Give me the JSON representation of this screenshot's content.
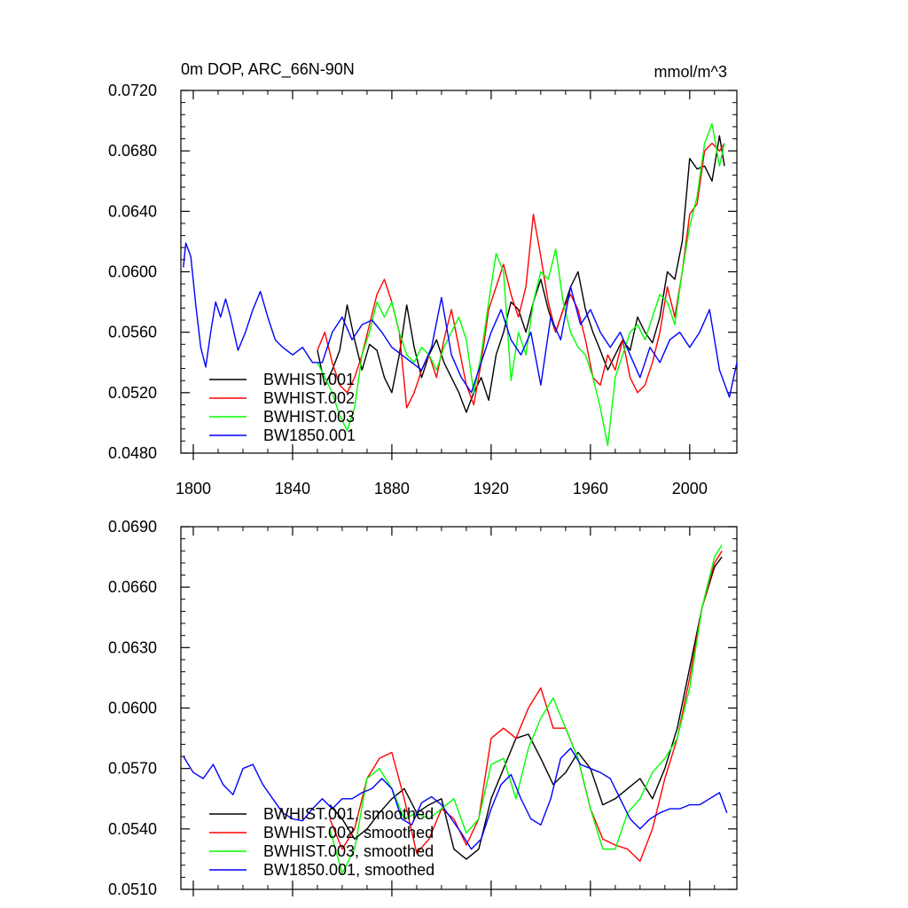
{
  "chart_data": [
    {
      "type": "line",
      "title": "0m DOP, ARC_66N-90N",
      "units": "mmol/m^3",
      "xlabel": "",
      "ylabel": "",
      "xlim": [
        1795,
        2019
      ],
      "ylim": [
        0.048,
        0.072
      ],
      "xticks": [
        1800,
        1840,
        1880,
        1920,
        1960,
        2000
      ],
      "xtick_labels": [
        "1800",
        "1840",
        "1880",
        "1920",
        "1960",
        "2000"
      ],
      "yticks": [
        0.048,
        0.052,
        0.056,
        0.06,
        0.064,
        0.068,
        0.072
      ],
      "ytick_labels": [
        "0.0480",
        "0.0520",
        "0.0560",
        "0.0600",
        "0.0640",
        "0.0680",
        "0.0720"
      ],
      "legend": "bottom-left",
      "series": [
        {
          "name": "BWHIST.001",
          "color": "#000000",
          "x": [
            1850,
            1853,
            1856,
            1859,
            1862,
            1865,
            1868,
            1871,
            1874,
            1877,
            1880,
            1883,
            1886,
            1889,
            1892,
            1895,
            1898,
            1901,
            1904,
            1907,
            1910,
            1913,
            1916,
            1919,
            1922,
            1925,
            1928,
            1931,
            1934,
            1937,
            1940,
            1943,
            1946,
            1949,
            1952,
            1955,
            1958,
            1961,
            1964,
            1967,
            1970,
            1973,
            1976,
            1979,
            1982,
            1985,
            1988,
            1991,
            1994,
            1997,
            2000,
            2003,
            2006,
            2009,
            2012,
            2014
          ],
          "y": [
            0.0548,
            0.0525,
            0.0535,
            0.0548,
            0.0578,
            0.0555,
            0.0535,
            0.0552,
            0.0548,
            0.053,
            0.052,
            0.0545,
            0.0578,
            0.055,
            0.053,
            0.0545,
            0.0555,
            0.054,
            0.053,
            0.052,
            0.0507,
            0.052,
            0.053,
            0.0515,
            0.0545,
            0.056,
            0.058,
            0.0575,
            0.056,
            0.058,
            0.0595,
            0.0575,
            0.056,
            0.0575,
            0.059,
            0.06,
            0.0575,
            0.056,
            0.0548,
            0.0535,
            0.0545,
            0.0555,
            0.0548,
            0.057,
            0.056,
            0.0553,
            0.057,
            0.06,
            0.0595,
            0.062,
            0.0675,
            0.0668,
            0.067,
            0.066,
            0.069,
            0.067
          ]
        },
        {
          "name": "BWHIST.002",
          "color": "#ff0000",
          "x": [
            1850,
            1853,
            1856,
            1859,
            1862,
            1865,
            1868,
            1871,
            1874,
            1877,
            1880,
            1883,
            1886,
            1889,
            1892,
            1895,
            1898,
            1901,
            1904,
            1907,
            1910,
            1913,
            1916,
            1919,
            1922,
            1925,
            1928,
            1931,
            1934,
            1937,
            1940,
            1943,
            1946,
            1949,
            1952,
            1955,
            1958,
            1961,
            1964,
            1967,
            1970,
            1973,
            1976,
            1979,
            1982,
            1985,
            1988,
            1991,
            1994,
            1997,
            2000,
            2003,
            2006,
            2009,
            2012,
            2014
          ],
          "y": [
            0.0548,
            0.056,
            0.054,
            0.0525,
            0.052,
            0.053,
            0.0545,
            0.0565,
            0.0585,
            0.0595,
            0.058,
            0.056,
            0.051,
            0.052,
            0.0535,
            0.0545,
            0.053,
            0.0555,
            0.0575,
            0.055,
            0.0525,
            0.0512,
            0.054,
            0.0575,
            0.059,
            0.0605,
            0.0585,
            0.057,
            0.059,
            0.0638,
            0.061,
            0.058,
            0.056,
            0.0575,
            0.0585,
            0.0575,
            0.0555,
            0.053,
            0.0525,
            0.0545,
            0.0535,
            0.0555,
            0.053,
            0.052,
            0.0525,
            0.054,
            0.056,
            0.059,
            0.057,
            0.06,
            0.0638,
            0.0645,
            0.068,
            0.0685,
            0.068,
            0.0685
          ]
        },
        {
          "name": "BWHIST.003",
          "color": "#00ff00",
          "x": [
            1850,
            1853,
            1856,
            1859,
            1862,
            1865,
            1868,
            1871,
            1874,
            1877,
            1880,
            1883,
            1886,
            1889,
            1892,
            1895,
            1898,
            1901,
            1904,
            1907,
            1910,
            1913,
            1916,
            1919,
            1922,
            1925,
            1928,
            1931,
            1934,
            1937,
            1940,
            1943,
            1946,
            1949,
            1952,
            1955,
            1958,
            1961,
            1964,
            1967,
            1970,
            1973,
            1976,
            1979,
            1982,
            1985,
            1988,
            1991,
            1994,
            1997,
            2000,
            2003,
            2006,
            2009,
            2012,
            2014
          ],
          "y": [
            0.054,
            0.053,
            0.052,
            0.0505,
            0.0495,
            0.051,
            0.0545,
            0.056,
            0.058,
            0.057,
            0.058,
            0.056,
            0.0545,
            0.054,
            0.055,
            0.0545,
            0.0535,
            0.055,
            0.056,
            0.057,
            0.0555,
            0.052,
            0.0545,
            0.058,
            0.0612,
            0.06,
            0.0528,
            0.056,
            0.0545,
            0.058,
            0.06,
            0.0595,
            0.0615,
            0.058,
            0.056,
            0.055,
            0.0545,
            0.053,
            0.051,
            0.0485,
            0.053,
            0.0545,
            0.056,
            0.0565,
            0.0555,
            0.057,
            0.0585,
            0.058,
            0.0565,
            0.06,
            0.063,
            0.065,
            0.0685,
            0.0698,
            0.067,
            0.0685
          ]
        },
        {
          "name": "BW1850.001",
          "color": "#0000ff",
          "x": [
            1796,
            1797,
            1799,
            1801,
            1803,
            1805,
            1807,
            1809,
            1811,
            1813,
            1815,
            1818,
            1821,
            1824,
            1827,
            1830,
            1833,
            1836,
            1840,
            1844,
            1848,
            1852,
            1856,
            1860,
            1864,
            1868,
            1872,
            1876,
            1880,
            1884,
            1888,
            1892,
            1896,
            1900,
            1904,
            1908,
            1912,
            1916,
            1920,
            1924,
            1928,
            1932,
            1936,
            1940,
            1944,
            1948,
            1952,
            1956,
            1960,
            1964,
            1968,
            1972,
            1976,
            1980,
            1984,
            1988,
            1992,
            1996,
            2000,
            2004,
            2008,
            2012,
            2016,
            2019
          ],
          "y": [
            0.0603,
            0.0619,
            0.061,
            0.0578,
            0.055,
            0.0537,
            0.056,
            0.058,
            0.057,
            0.0582,
            0.057,
            0.0548,
            0.056,
            0.0575,
            0.0587,
            0.057,
            0.0555,
            0.055,
            0.0545,
            0.055,
            0.054,
            0.054,
            0.056,
            0.057,
            0.0555,
            0.0565,
            0.0568,
            0.056,
            0.055,
            0.0545,
            0.054,
            0.0535,
            0.055,
            0.0583,
            0.0545,
            0.053,
            0.052,
            0.054,
            0.056,
            0.0575,
            0.0555,
            0.0545,
            0.056,
            0.0525,
            0.057,
            0.0555,
            0.059,
            0.0565,
            0.0575,
            0.056,
            0.055,
            0.056,
            0.0545,
            0.053,
            0.055,
            0.054,
            0.0555,
            0.056,
            0.055,
            0.056,
            0.0575,
            0.0535,
            0.0517,
            0.054
          ]
        }
      ]
    },
    {
      "type": "line",
      "title": "",
      "xlabel": "",
      "ylabel": "",
      "xlim": [
        1795,
        2019
      ],
      "ylim": [
        0.051,
        0.069
      ],
      "xticks": [
        1800,
        1840,
        1880,
        1920,
        1960,
        2000
      ],
      "yticks": [
        0.051,
        0.054,
        0.057,
        0.06,
        0.063,
        0.066,
        0.069
      ],
      "ytick_labels": [
        "0.0510",
        "0.0540",
        "0.0570",
        "0.0600",
        "0.0630",
        "0.0660",
        "0.0690"
      ],
      "legend": "bottom-left",
      "series": [
        {
          "name": "BWHIST.001, smoothed",
          "color": "#000000",
          "x": [
            1855,
            1860,
            1865,
            1870,
            1875,
            1880,
            1885,
            1890,
            1895,
            1900,
            1905,
            1910,
            1915,
            1920,
            1925,
            1930,
            1935,
            1940,
            1945,
            1950,
            1955,
            1960,
            1965,
            1970,
            1975,
            1980,
            1985,
            1990,
            1995,
            2000,
            2005,
            2010,
            2013
          ],
          "y": [
            0.0552,
            0.0545,
            0.0535,
            0.054,
            0.0548,
            0.0555,
            0.056,
            0.0548,
            0.0552,
            0.0555,
            0.053,
            0.0525,
            0.053,
            0.0555,
            0.057,
            0.0585,
            0.0587,
            0.0575,
            0.0562,
            0.0568,
            0.0578,
            0.057,
            0.0552,
            0.0555,
            0.056,
            0.0565,
            0.0555,
            0.057,
            0.059,
            0.062,
            0.065,
            0.067,
            0.0675
          ]
        },
        {
          "name": "BWHIST.002, smoothed",
          "color": "#ff0000",
          "x": [
            1855,
            1860,
            1865,
            1870,
            1875,
            1880,
            1885,
            1890,
            1895,
            1900,
            1905,
            1910,
            1915,
            1920,
            1925,
            1930,
            1935,
            1940,
            1945,
            1950,
            1955,
            1960,
            1965,
            1970,
            1975,
            1980,
            1985,
            1990,
            1995,
            2000,
            2005,
            2010,
            2013
          ],
          "y": [
            0.0545,
            0.053,
            0.054,
            0.0565,
            0.0575,
            0.0578,
            0.0555,
            0.0528,
            0.0535,
            0.055,
            0.0545,
            0.0532,
            0.0545,
            0.0585,
            0.059,
            0.0585,
            0.06,
            0.061,
            0.059,
            0.059,
            0.0575,
            0.055,
            0.0535,
            0.0532,
            0.053,
            0.0524,
            0.054,
            0.0565,
            0.0585,
            0.0615,
            0.065,
            0.0672,
            0.0678
          ]
        },
        {
          "name": "BWHIST.003, smoothed",
          "color": "#00ff00",
          "x": [
            1855,
            1860,
            1865,
            1870,
            1875,
            1880,
            1885,
            1890,
            1895,
            1900,
            1905,
            1910,
            1915,
            1920,
            1925,
            1930,
            1935,
            1940,
            1945,
            1950,
            1955,
            1960,
            1965,
            1970,
            1975,
            1980,
            1985,
            1990,
            1995,
            2000,
            2005,
            2010,
            2013
          ],
          "y": [
            0.054,
            0.0518,
            0.053,
            0.0565,
            0.057,
            0.056,
            0.0545,
            0.0548,
            0.0545,
            0.055,
            0.0555,
            0.0538,
            0.0545,
            0.0572,
            0.0575,
            0.0555,
            0.058,
            0.0595,
            0.0605,
            0.059,
            0.0575,
            0.055,
            0.053,
            0.053,
            0.0548,
            0.0555,
            0.0568,
            0.0575,
            0.0585,
            0.061,
            0.065,
            0.0675,
            0.0681
          ]
        },
        {
          "name": "BW1850.001, smoothed",
          "color": "#0000ff",
          "x": [
            1796,
            1800,
            1804,
            1808,
            1812,
            1816,
            1820,
            1824,
            1828,
            1832,
            1836,
            1840,
            1844,
            1848,
            1852,
            1856,
            1860,
            1864,
            1868,
            1872,
            1876,
            1880,
            1884,
            1888,
            1892,
            1896,
            1900,
            1904,
            1908,
            1912,
            1916,
            1920,
            1924,
            1928,
            1932,
            1936,
            1940,
            1944,
            1948,
            1952,
            1956,
            1960,
            1964,
            1968,
            1972,
            1976,
            1980,
            1984,
            1988,
            1992,
            1996,
            2000,
            2004,
            2008,
            2012,
            2015
          ],
          "y": [
            0.0576,
            0.0568,
            0.0565,
            0.0572,
            0.0562,
            0.0557,
            0.057,
            0.0572,
            0.0562,
            0.0555,
            0.0548,
            0.0545,
            0.0544,
            0.055,
            0.0555,
            0.055,
            0.0555,
            0.0555,
            0.0558,
            0.056,
            0.0565,
            0.056,
            0.0545,
            0.0542,
            0.0553,
            0.0556,
            0.0552,
            0.0545,
            0.0538,
            0.053,
            0.0535,
            0.055,
            0.0562,
            0.0567,
            0.0555,
            0.0545,
            0.0542,
            0.0555,
            0.0575,
            0.058,
            0.0572,
            0.057,
            0.0568,
            0.0565,
            0.0555,
            0.0545,
            0.054,
            0.0545,
            0.0548,
            0.055,
            0.055,
            0.0552,
            0.0552,
            0.0555,
            0.0558,
            0.0548
          ]
        }
      ]
    }
  ]
}
